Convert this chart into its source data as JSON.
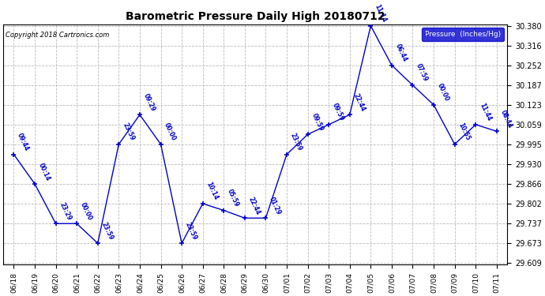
{
  "title": "Barometric Pressure Daily High 20180712",
  "copyright": "Copyright 2018 Cartronics.com",
  "legend_label": "Pressure  (Inches/Hg)",
  "ylim": [
    29.609,
    30.38
  ],
  "yticks": [
    29.609,
    29.673,
    29.737,
    29.802,
    29.866,
    29.93,
    29.995,
    30.059,
    30.123,
    30.187,
    30.252,
    30.316,
    30.38
  ],
  "line_color": "#0000CC",
  "bg_color": "#ffffff",
  "grid_color": "#bbbbbb",
  "data": [
    {
      "x": 0,
      "label": "06/18",
      "value": 29.962,
      "time": "09:44"
    },
    {
      "x": 1,
      "label": "06/19",
      "value": 29.866,
      "time": "00:14"
    },
    {
      "x": 2,
      "label": "06/20",
      "value": 29.737,
      "time": "23:29"
    },
    {
      "x": 3,
      "label": "06/21",
      "value": 29.737,
      "time": "00:00"
    },
    {
      "x": 4,
      "label": "06/22",
      "value": 29.673,
      "time": "23:59"
    },
    {
      "x": 5,
      "label": "06/23",
      "value": 29.995,
      "time": "23:59"
    },
    {
      "x": 6,
      "label": "06/24",
      "value": 30.091,
      "time": "09:29"
    },
    {
      "x": 7,
      "label": "06/25",
      "value": 29.995,
      "time": "00:00"
    },
    {
      "x": 8,
      "label": "06/26",
      "value": 29.673,
      "time": "23:59"
    },
    {
      "x": 9,
      "label": "06/27",
      "value": 29.802,
      "time": "10:14"
    },
    {
      "x": 10,
      "label": "06/28",
      "value": 29.78,
      "time": "05:59"
    },
    {
      "x": 11,
      "label": "06/29",
      "value": 29.755,
      "time": "22:44"
    },
    {
      "x": 12,
      "label": "06/30",
      "value": 29.755,
      "time": "01:29"
    },
    {
      "x": 13,
      "label": "07/01",
      "value": 29.962,
      "time": "23:59"
    },
    {
      "x": 14,
      "label": "07/02",
      "value": 30.027,
      "time": "09:59"
    },
    {
      "x": 15,
      "label": "07/03",
      "value": 30.059,
      "time": "09:59"
    },
    {
      "x": 16,
      "label": "07/04",
      "value": 30.091,
      "time": "22:44"
    },
    {
      "x": 17,
      "label": "07/05",
      "value": 30.38,
      "time": "11:14"
    },
    {
      "x": 18,
      "label": "07/06",
      "value": 30.252,
      "time": "06:44"
    },
    {
      "x": 19,
      "label": "07/07",
      "value": 30.187,
      "time": "07:59"
    },
    {
      "x": 20,
      "label": "07/08",
      "value": 30.123,
      "time": "00:00"
    },
    {
      "x": 21,
      "label": "07/09",
      "value": 29.995,
      "time": "10:55"
    },
    {
      "x": 22,
      "label": "07/10",
      "value": 30.059,
      "time": "11:44"
    },
    {
      "x": 23,
      "label": "07/11",
      "value": 30.037,
      "time": "08:44"
    }
  ]
}
